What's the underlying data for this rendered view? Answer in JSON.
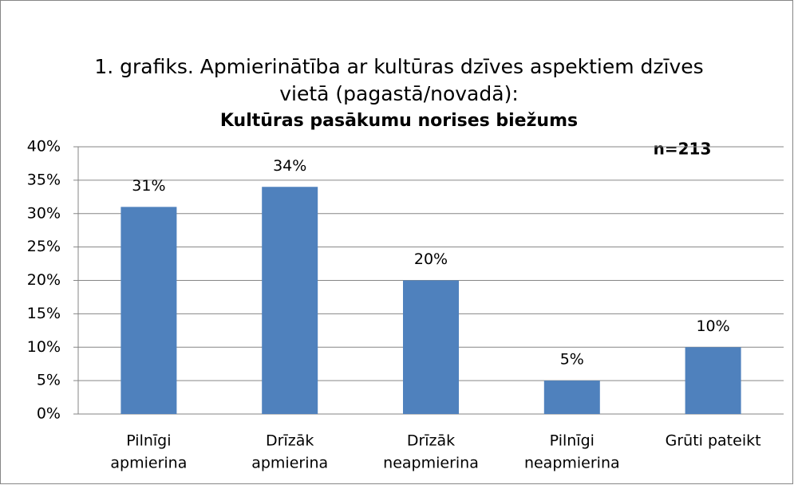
{
  "chart_data": {
    "type": "bar",
    "title": [
      "1. grafiks. Apmierinātība ar kultūras dzīves aspektiem dzīves",
      "vietā (pagastā/novadā):"
    ],
    "subtitle": "Kultūras pasākumu norises biežums",
    "annotation": "n=213",
    "categories": [
      [
        "Pilnīgi",
        "apmierina"
      ],
      [
        "Drīzāk",
        "apmierina"
      ],
      [
        "Drīzāk",
        "neapmierina"
      ],
      [
        "Pilnīgi",
        "neapmierina"
      ],
      [
        "Grūti pateikt"
      ]
    ],
    "values": [
      31,
      34,
      20,
      5,
      10
    ],
    "value_labels": [
      "31%",
      "34%",
      "20%",
      "5%",
      "10%"
    ],
    "color": "#4f81bd",
    "ylim": [
      0,
      40
    ],
    "yticks": [
      {
        "value": 0,
        "label": "0%"
      },
      {
        "value": 5,
        "label": "5%"
      },
      {
        "value": 10,
        "label": "10%"
      },
      {
        "value": 15,
        "label": "15%"
      },
      {
        "value": 20,
        "label": "20%"
      },
      {
        "value": 25,
        "label": "25%"
      },
      {
        "value": 30,
        "label": "30%"
      },
      {
        "value": 35,
        "label": "35%"
      },
      {
        "value": 40,
        "label": "40%"
      }
    ],
    "grid": true
  }
}
